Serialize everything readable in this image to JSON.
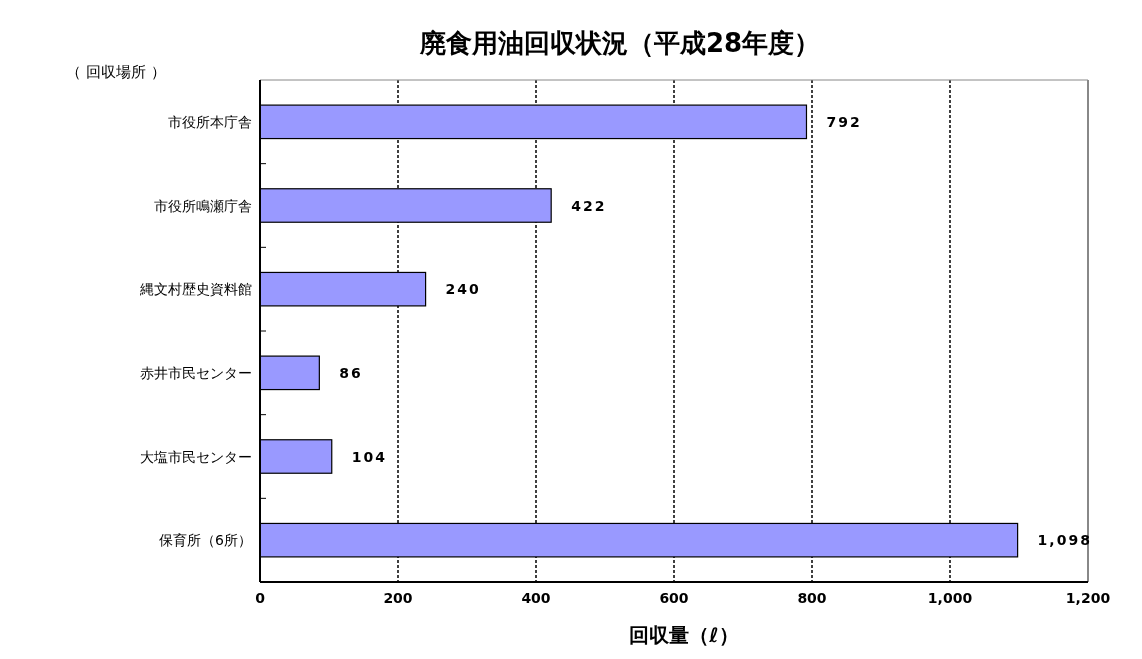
{
  "chart_data": {
    "type": "bar",
    "orientation": "horizontal",
    "title": "廃食用油回収状況（平成28年度）",
    "ylabel": "（ 回収場所 ）",
    "xlabel": "回収量（ℓ）",
    "categories": [
      "市役所本庁舎",
      "市役所鳴瀬庁舎",
      "縄文村歴史資料館",
      "赤井市民センター",
      "大塩市民センター",
      "保育所（6所）"
    ],
    "values": [
      792,
      422,
      240,
      86,
      104,
      1098
    ],
    "value_labels": [
      "792",
      "422",
      "240",
      "86",
      "104",
      "1,098"
    ],
    "color": "#9999ff",
    "xlim": [
      0,
      1200
    ],
    "xticks": [
      0,
      200,
      400,
      600,
      800,
      {
        "value": 1000,
        "label": "1,000"
      },
      {
        "value": 1200,
        "label": "1,200"
      }
    ],
    "grid": "x"
  }
}
